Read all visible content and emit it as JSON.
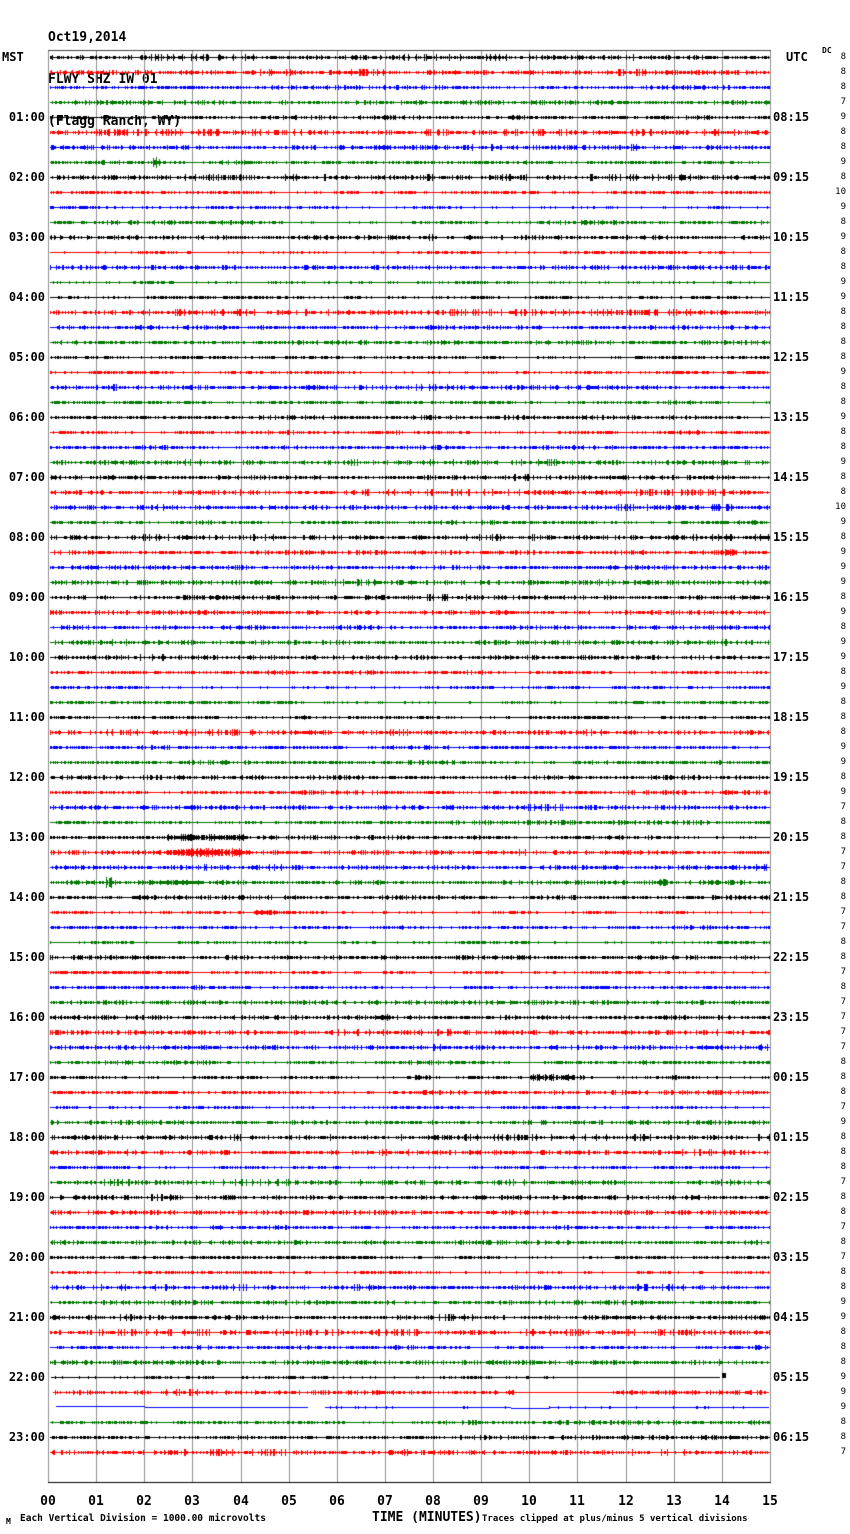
{
  "header": {
    "date": "Oct19,2014",
    "station": "FLWY SHZ IW 01",
    "location": "(Flagg Ranch, WY)"
  },
  "axes": {
    "left_label": "MST",
    "right_label": "UTC",
    "dc_label": "DC"
  },
  "footer": {
    "corner_mark": "M",
    "scale_note": "Each Vertical Division = 1000.00 microvolts",
    "clip_note": "Traces clipped at plus/minus 5 vertical divisions"
  },
  "chart_data": {
    "type": "line",
    "subtype": "helicorder-seismogram",
    "x_axis": {
      "label": "TIME (MINUTES)",
      "min": 0,
      "max": 15,
      "tick_labels": [
        "00",
        "01",
        "02",
        "03",
        "04",
        "05",
        "06",
        "07",
        "08",
        "09",
        "10",
        "11",
        "12",
        "13",
        "14",
        "15"
      ],
      "minor_ticks_per_minute": 5
    },
    "grid": true,
    "n_traces": 94,
    "minutes_per_trace": 15,
    "colors_cycle": [
      "#000000",
      "#ff0000",
      "#0000ff",
      "#007700"
    ],
    "grid_color": "#909090",
    "left_hour_labels": [
      "01:00",
      "02:00",
      "03:00",
      "04:00",
      "05:00",
      "06:00",
      "07:00",
      "08:00",
      "09:00",
      "10:00",
      "11:00",
      "12:00",
      "13:00",
      "14:00",
      "15:00",
      "16:00",
      "17:00",
      "18:00",
      "19:00",
      "20:00",
      "21:00",
      "22:00",
      "23:00"
    ],
    "right_utc_labels": [
      "08:15",
      "09:15",
      "10:15",
      "11:15",
      "12:15",
      "13:15",
      "14:15",
      "15:15",
      "16:15",
      "17:15",
      "18:15",
      "19:15",
      "20:15",
      "21:15",
      "22:15",
      "23:15",
      "00:15",
      "01:15",
      "02:15",
      "03:15",
      "04:15",
      "05:15",
      "06:15"
    ],
    "dc_values": [
      8,
      8,
      8,
      7,
      9,
      8,
      8,
      9,
      8,
      10,
      9,
      8,
      9,
      8,
      8,
      9,
      9,
      8,
      8,
      8,
      8,
      9,
      8,
      8,
      9,
      8,
      8,
      9,
      8,
      8,
      10,
      9,
      8,
      9,
      9,
      9,
      8,
      9,
      8,
      9,
      9,
      8,
      9,
      8,
      8,
      8,
      9,
      9,
      8,
      9,
      7,
      8,
      8,
      7,
      7,
      8,
      8,
      7,
      7,
      8,
      8,
      7,
      8,
      7,
      7,
      7,
      7,
      8,
      8,
      8,
      7,
      9,
      8,
      8,
      8,
      7,
      8,
      8,
      7,
      8,
      7,
      8,
      8,
      9,
      9,
      8,
      8,
      8,
      9,
      9,
      9,
      8,
      8,
      7
    ],
    "events": [
      {
        "trace": 7,
        "start_min": 2.15,
        "end_min": 2.35,
        "amp": 5
      },
      {
        "trace": 20,
        "start_min": 1.25,
        "end_min": 1.45,
        "amp": 2
      },
      {
        "trace": 33,
        "start_min": 14.05,
        "end_min": 14.3,
        "amp": 3
      },
      {
        "trace": 44,
        "start_min": 5.1,
        "end_min": 5.45,
        "amp": 2
      },
      {
        "trace": 48,
        "start_min": 12.8,
        "end_min": 13.05,
        "amp": 2
      },
      {
        "trace": 52,
        "start_min": 2.4,
        "end_min": 4.1,
        "amp": 3
      },
      {
        "trace": 53,
        "start_min": 2.5,
        "end_min": 4.05,
        "amp": 4
      },
      {
        "trace": 55,
        "start_min": 1.2,
        "end_min": 1.4,
        "amp": 5
      },
      {
        "trace": 55,
        "start_min": 2.1,
        "end_min": 3.2,
        "amp": 2
      },
      {
        "trace": 55,
        "start_min": 12.65,
        "end_min": 12.9,
        "amp": 4
      },
      {
        "trace": 55,
        "start_min": 13.75,
        "end_min": 13.95,
        "amp": 2
      },
      {
        "trace": 57,
        "start_min": 4.3,
        "end_min": 4.8,
        "amp": 2
      },
      {
        "trace": 64,
        "start_min": 6.8,
        "end_min": 7.05,
        "amp": 3
      },
      {
        "trace": 68,
        "start_min": 7.45,
        "end_min": 7.95,
        "amp": 2
      },
      {
        "trace": 68,
        "start_min": 10.0,
        "end_min": 11.15,
        "amp": 3
      },
      {
        "trace": 68,
        "start_min": 12.85,
        "end_min": 13.05,
        "amp": 2
      },
      {
        "trace": 78,
        "start_min": 3.4,
        "end_min": 3.6,
        "amp": 2
      }
    ],
    "special_traces": {
      "88": {
        "segments": [
          {
            "m0": 0.05,
            "m1": 10.5,
            "noise": 1,
            "dy": 0
          },
          {
            "m0": 10.5,
            "m1": 13.95,
            "noise": 0.3,
            "dy": 0
          }
        ],
        "end_spike_min": 14.03
      },
      "89": {
        "segments": [
          {
            "m0": 0.1,
            "m1": 9.7,
            "noise": 1,
            "dy": 0
          },
          {
            "m0": 9.7,
            "m1": 11.7,
            "noise": 0.2,
            "dy": 0
          },
          {
            "m0": 11.7,
            "m1": 14.97,
            "noise": 1,
            "dy": 0
          }
        ]
      },
      "90": {
        "segments": [
          {
            "m0": 0.15,
            "m1": 2.0,
            "noise": 0.25,
            "dy": -1
          },
          {
            "m0": 2.0,
            "m1": 5.4,
            "noise": 0.3,
            "dy": 0
          },
          {
            "m0": 5.75,
            "m1": 9.6,
            "noise": 0.6,
            "dy": 0
          },
          {
            "m0": 9.6,
            "m1": 10.4,
            "noise": 0.2,
            "dy": 1
          },
          {
            "m0": 10.4,
            "m1": 14.97,
            "noise": 0.55,
            "dy": 0
          }
        ]
      }
    }
  }
}
